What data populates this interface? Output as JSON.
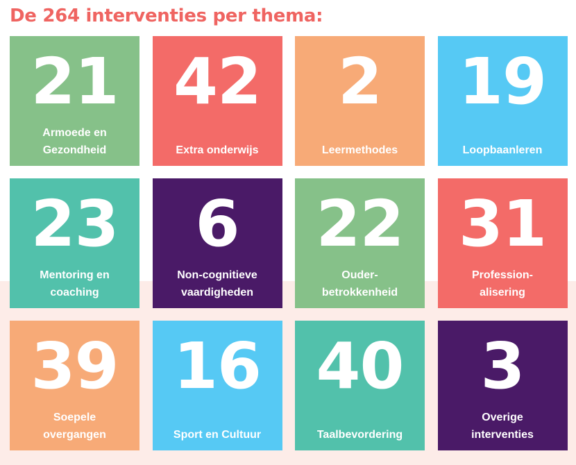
{
  "title": "De 264 interventies per thema:",
  "colors": {
    "title": "#ef6461",
    "green": "#86c189",
    "red": "#f36b68",
    "orange": "#f7aa77",
    "blue": "#56c9f4",
    "teal": "#52c1ab",
    "purple": "#4a1a67"
  },
  "tiles": [
    {
      "number": "21",
      "label": "Armoede en\nGezondheid",
      "color": "#86c189"
    },
    {
      "number": "42",
      "label": "Extra onderwijs",
      "color": "#f36b68"
    },
    {
      "number": "2",
      "label": "Leermethodes",
      "color": "#f7aa77"
    },
    {
      "number": "19",
      "label": "Loopbaanleren",
      "color": "#56c9f4"
    },
    {
      "number": "23",
      "label": "Mentoring en\ncoaching",
      "color": "#52c1ab"
    },
    {
      "number": "6",
      "label": "Non-cognitieve\nvaardigheden",
      "color": "#4a1a67"
    },
    {
      "number": "22",
      "label": "Ouder-\nbetrokkenheid",
      "color": "#86c189"
    },
    {
      "number": "31",
      "label": "Profession-\nalisering",
      "color": "#f36b68"
    },
    {
      "number": "39",
      "label": "Soepele\novergangen",
      "color": "#f7aa77"
    },
    {
      "number": "16",
      "label": "Sport en Cultuur",
      "color": "#56c9f4"
    },
    {
      "number": "40",
      "label": "Taalbevordering",
      "color": "#52c1ab"
    },
    {
      "number": "3",
      "label": "Overige\ninterventies",
      "color": "#4a1a67"
    }
  ]
}
